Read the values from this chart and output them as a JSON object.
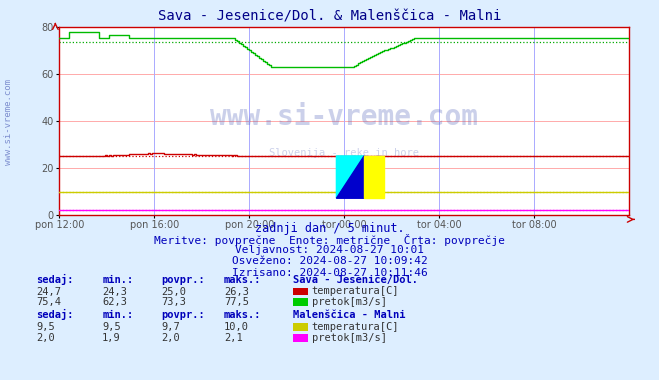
{
  "title": "Sava - Jesenice/Dol. & Malenščica - Malni",
  "bg_color": "#ddeeff",
  "plot_bg_color": "#ffffff",
  "grid_color_h": "#ffaaaa",
  "grid_color_v": "#aaaaff",
  "xlim": [
    0,
    288
  ],
  "ylim": [
    0,
    80
  ],
  "yticks": [
    0,
    20,
    40,
    60,
    80
  ],
  "xtick_labels": [
    "pon 12:00",
    "pon 16:00",
    "pon 20:00",
    "tor 00:00",
    "tor 04:00",
    "tor 08:00"
  ],
  "xtick_positions": [
    0,
    48,
    96,
    144,
    192,
    240
  ],
  "subtitle1": "zadnji dan / 5 minut.",
  "subtitle2": "Meritve: povprečne  Enote: metrične  Črta: povprečje",
  "subtitle3": "Veljavnost: 2024-08-27 10:01",
  "subtitle4": "Osveženo: 2024-08-27 10:09:42",
  "subtitle5": "Izrisano: 2024-08-27 10:11:46",
  "watermark": "www.si-vreme.com",
  "watermark2": "Slovenija - reke in hore",
  "line_colors": {
    "sava_temp": "#cc0000",
    "sava_pretok": "#00bb00",
    "malni_temp": "#cccc00",
    "malni_pretok": "#ff00ff"
  },
  "avg_line_colors": {
    "sava_temp": "#cc0000",
    "sava_pretok": "#00aa00",
    "malni_temp": "#aaaa00",
    "malni_pretok": "#cc00cc"
  },
  "legend_info": {
    "sava_title": "Sava - Jesenice/Dol.",
    "sava_temp_label": "temperatura[C]",
    "sava_pretok_label": "pretok[m3/s]",
    "malni_title": "Malenščica - Malni",
    "malni_temp_label": "temperatura[C]",
    "malni_pretok_label": "pretok[m3/s]"
  },
  "stats": {
    "sava_temp": {
      "sedaj": "24,7",
      "min": "24,3",
      "povpr": "25,0",
      "maks": "26,3"
    },
    "sava_pretok": {
      "sedaj": "75,4",
      "min": "62,3",
      "povpr": "73,3",
      "maks": "77,5"
    },
    "malni_temp": {
      "sedaj": "9,5",
      "min": "9,5",
      "povpr": "9,7",
      "maks": "10,0"
    },
    "malni_pretok": {
      "sedaj": "2,0",
      "min": "1,9",
      "povpr": "2,0",
      "maks": "2,1"
    }
  },
  "text_color": "#0000bb",
  "label_color": "#0000bb",
  "sava_temp_avg": 25.0,
  "sava_pretok_avg": 73.3,
  "malni_temp_avg": 9.7,
  "malni_pretok_avg": 2.0
}
